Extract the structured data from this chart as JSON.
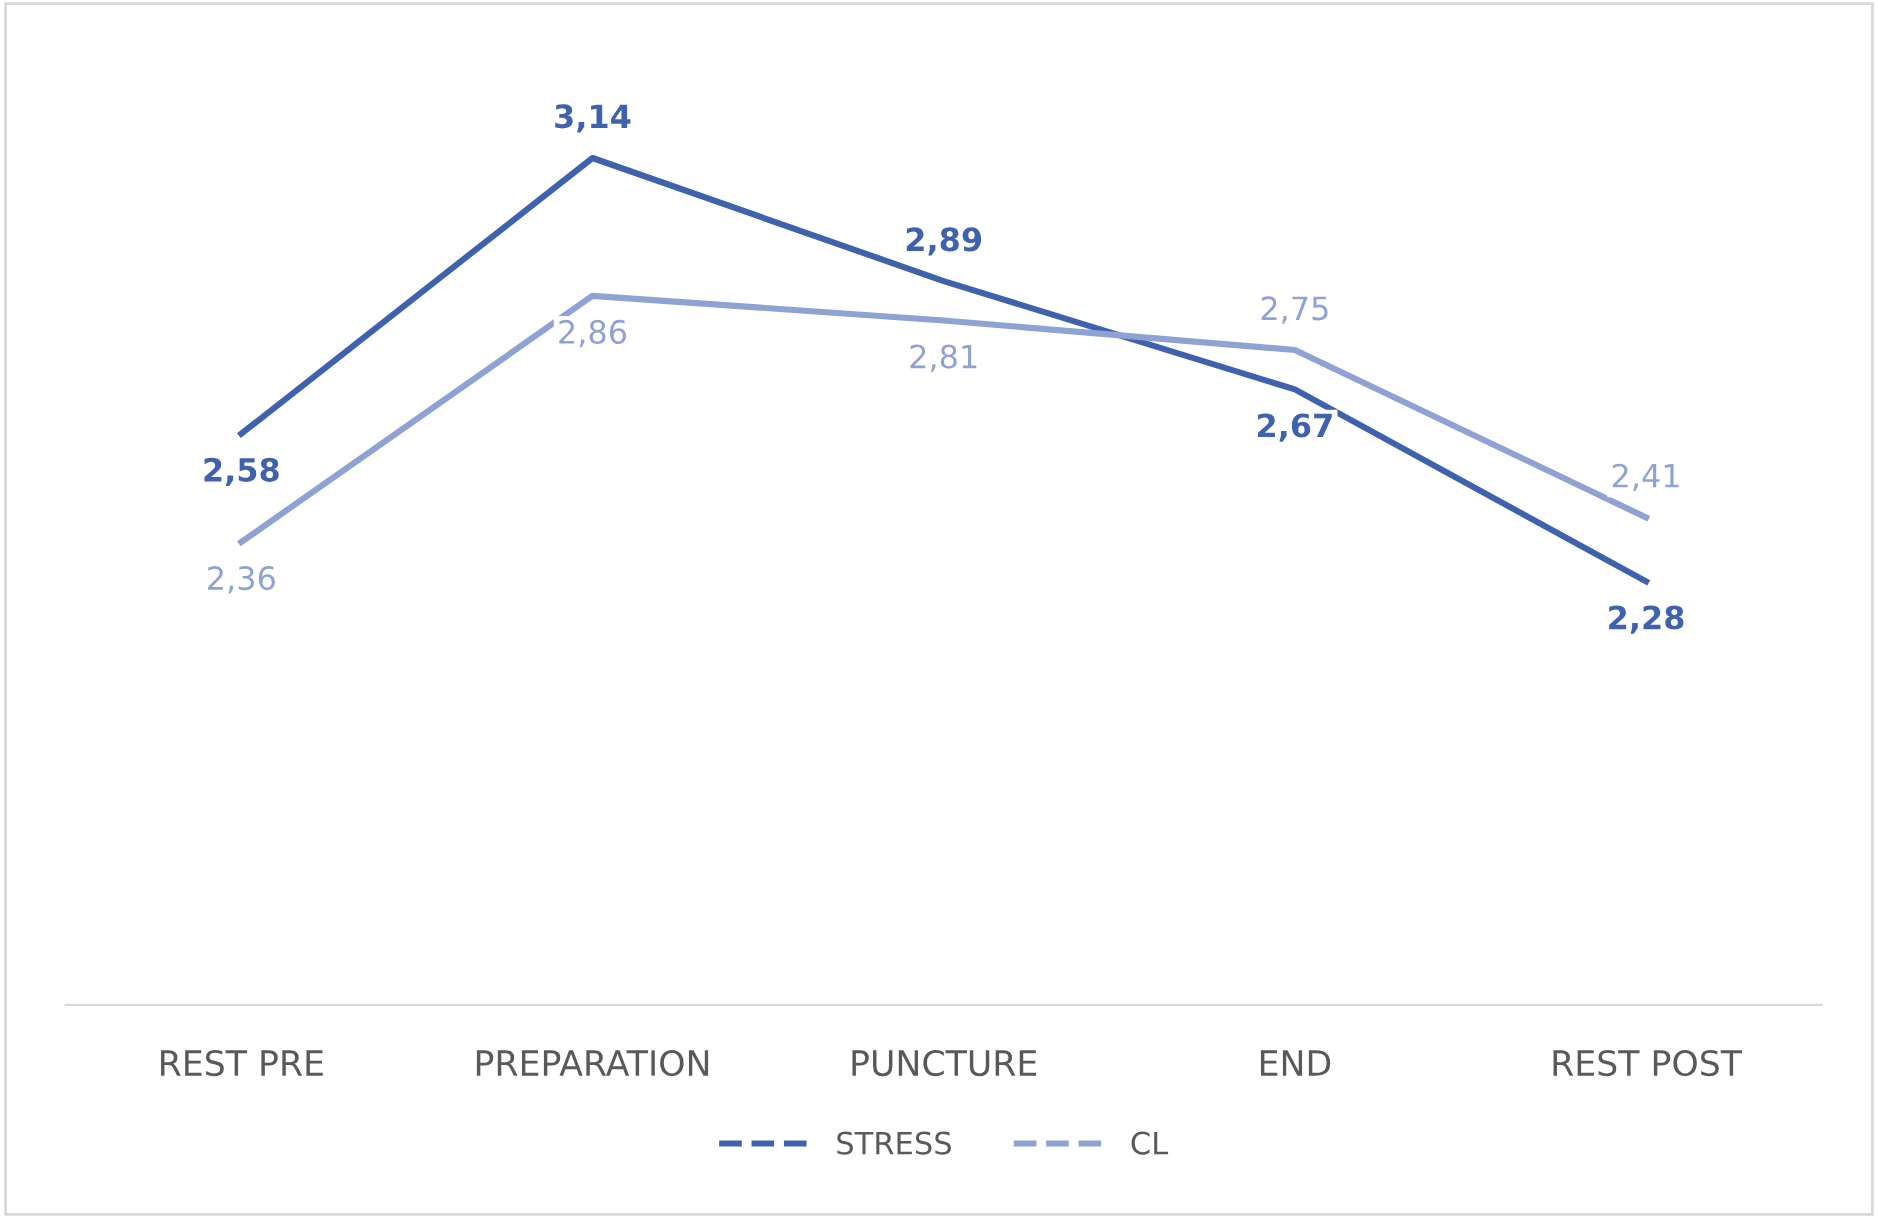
{
  "chart_data": {
    "type": "line",
    "categories": [
      "REST PRE",
      "PREPARATION",
      "PUNCTURE",
      "END",
      "REST POST"
    ],
    "series": [
      {
        "name": "STRESS",
        "color": "#3f62ae",
        "values": [
          2.58,
          3.14,
          2.89,
          2.67,
          2.28
        ],
        "value_labels": [
          "2,58",
          "3,14",
          "2,89",
          "2,67",
          "2,28"
        ]
      },
      {
        "name": "CL",
        "color": "#8fa2d4",
        "values": [
          2.36,
          2.86,
          2.81,
          2.75,
          2.41
        ],
        "value_labels": [
          "2,36",
          "2,86",
          "2,81",
          "2,75",
          "2,41"
        ]
      }
    ],
    "legend": "bottom",
    "grid": false,
    "marker": "none",
    "line_style": "solid"
  }
}
